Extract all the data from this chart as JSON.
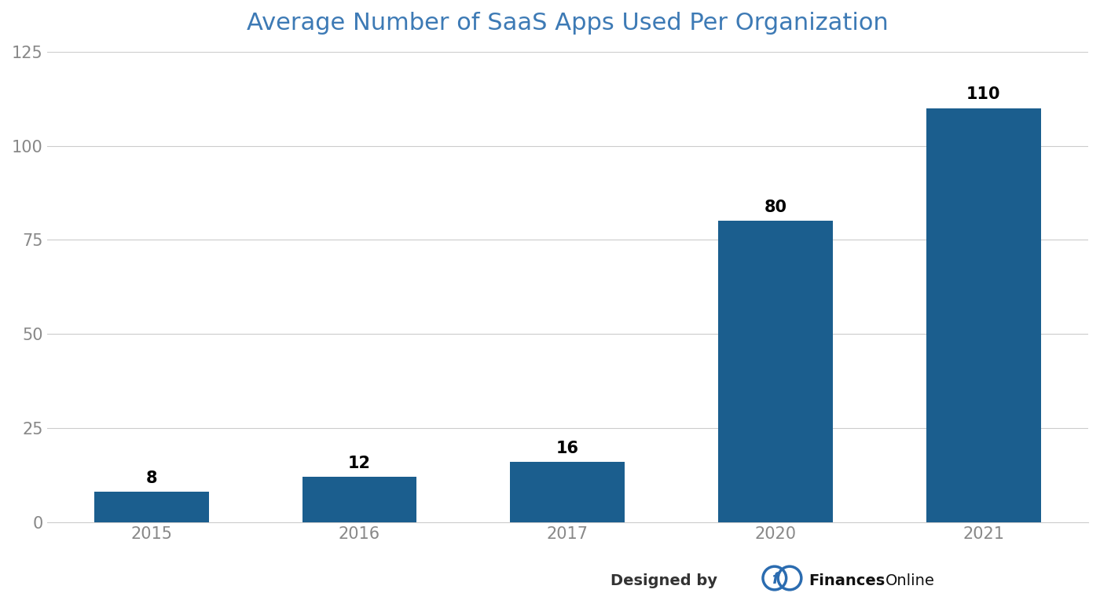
{
  "title": "Average Number of SaaS Apps Used Per Organization",
  "categories": [
    "2015",
    "2016",
    "2017",
    "2020",
    "2021"
  ],
  "values": [
    8,
    12,
    16,
    80,
    110
  ],
  "bar_color": "#1B5E8E",
  "title_color": "#3D7AB5",
  "title_fontsize": 22,
  "ylim": [
    0,
    125
  ],
  "yticks": [
    0,
    25,
    50,
    75,
    100,
    125
  ],
  "tick_fontsize": 15,
  "background_color": "#ffffff",
  "grid_color": "#cccccc",
  "annotation_fontsize": 15,
  "bar_width": 0.55,
  "tick_color": "#888888"
}
